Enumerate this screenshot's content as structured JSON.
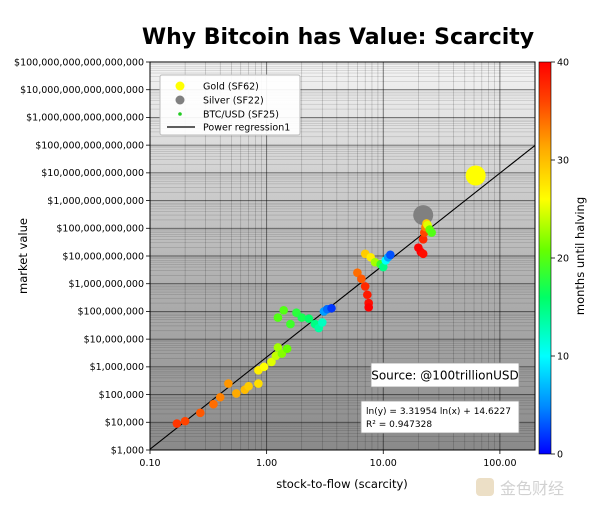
{
  "chart_data": {
    "type": "scatter",
    "title": "Why Bitcoin has Value: Scarcity",
    "xlabel": "stock-to-flow (scarcity)",
    "ylabel": "market value",
    "x_scale": "log",
    "y_scale": "log",
    "xlim": [
      0.1,
      200
    ],
    "ylim": [
      1000,
      100000000000000000
    ],
    "x_ticks": [
      0.1,
      1,
      10,
      100
    ],
    "x_tick_labels": [
      "0.10",
      "1.00",
      "10.00",
      "100.00"
    ],
    "y_ticks": [
      1000,
      10000,
      100000,
      1000000,
      10000000,
      100000000,
      1000000000,
      10000000000,
      100000000000,
      1000000000000,
      10000000000000,
      100000000000000,
      1000000000000000,
      10000000000000000,
      100000000000000000
    ],
    "y_tick_labels": [
      "$1,000",
      "$10,000",
      "$100,000",
      "$1,000,000",
      "$10,000,000",
      "$100,000,000",
      "$1,000,000,000",
      "$10,000,000,000",
      "$100,000,000,000",
      "$1,000,000,000,000",
      "$10,000,000,000,000",
      "$100,000,000,000,000",
      "$1,000,000,000,000,000",
      "$10,000,000,000,000,000",
      "$100,000,000,000,000,000"
    ],
    "grid": true,
    "legend": {
      "placement": "top-left",
      "entries": [
        {
          "label": "Gold (SF62)",
          "marker": "circle",
          "color": "#ffff00"
        },
        {
          "label": "Silver (SF22)",
          "marker": "circle",
          "color": "#808080"
        },
        {
          "label": "BTC/USD (SF25)",
          "marker": "dot",
          "color": "#22cc22"
        },
        {
          "label": "Power regression1",
          "marker": "line",
          "color": "#000000"
        }
      ]
    },
    "regression": {
      "label": "Power regression1",
      "equation": "ln(y) = 3.31954 ln(x) + 14.6227",
      "r2": "R² = 0.947328",
      "slope": 3.31954,
      "intercept": 14.6227
    },
    "source": "Source: @100trillionUSD",
    "colorbar": {
      "label": "months until halving",
      "min": 0,
      "max": 40,
      "ticks": [
        0,
        10,
        20,
        30,
        40
      ],
      "colormap": [
        "#0000ff",
        "#0088ff",
        "#00ffff",
        "#00ff66",
        "#66ff00",
        "#ffff00",
        "#ffaa00",
        "#ff4400",
        "#ff0000"
      ]
    },
    "series": [
      {
        "name": "Gold (SF62)",
        "points": [
          {
            "x": 62,
            "y": 8000000000000,
            "c": "#ffff00"
          }
        ]
      },
      {
        "name": "Silver (SF22)",
        "points": [
          {
            "x": 22,
            "y": 300000000000,
            "c": "#808080"
          }
        ]
      },
      {
        "name": "BTC/USD (SF25)",
        "points": [
          {
            "x": 0.17,
            "y": 9000,
            "m": 36
          },
          {
            "x": 0.2,
            "y": 11000,
            "m": 35
          },
          {
            "x": 0.27,
            "y": 22000,
            "m": 34
          },
          {
            "x": 0.35,
            "y": 45000,
            "m": 33
          },
          {
            "x": 0.4,
            "y": 80000,
            "m": 32
          },
          {
            "x": 0.47,
            "y": 250000,
            "m": 31
          },
          {
            "x": 0.55,
            "y": 110000,
            "m": 30
          },
          {
            "x": 0.65,
            "y": 150000,
            "m": 29
          },
          {
            "x": 0.7,
            "y": 200000,
            "m": 28
          },
          {
            "x": 0.85,
            "y": 250000,
            "m": 27
          },
          {
            "x": 0.85,
            "y": 750000,
            "m": 26
          },
          {
            "x": 0.95,
            "y": 1000000,
            "m": 25
          },
          {
            "x": 1.1,
            "y": 1500000,
            "m": 24
          },
          {
            "x": 1.2,
            "y": 2500000,
            "m": 23
          },
          {
            "x": 1.25,
            "y": 5000000,
            "m": 22
          },
          {
            "x": 1.35,
            "y": 3000000,
            "m": 21
          },
          {
            "x": 1.5,
            "y": 4500000,
            "m": 20
          },
          {
            "x": 1.25,
            "y": 60000000,
            "m": 19
          },
          {
            "x": 1.4,
            "y": 110000000,
            "m": 19
          },
          {
            "x": 1.6,
            "y": 35000000,
            "m": 18
          },
          {
            "x": 1.8,
            "y": 90000000,
            "m": 17
          },
          {
            "x": 2.0,
            "y": 60000000,
            "m": 16
          },
          {
            "x": 2.3,
            "y": 55000000,
            "m": 15
          },
          {
            "x": 2.6,
            "y": 35000000,
            "m": 14
          },
          {
            "x": 2.8,
            "y": 25000000,
            "m": 13
          },
          {
            "x": 3.0,
            "y": 40000000,
            "m": 12
          },
          {
            "x": 3.1,
            "y": 100000000,
            "m": 6
          },
          {
            "x": 3.3,
            "y": 120000000,
            "m": 4
          },
          {
            "x": 3.6,
            "y": 130000000,
            "m": 2
          },
          {
            "x": 6.0,
            "y": 2500000000,
            "m": 33
          },
          {
            "x": 6.5,
            "y": 1500000000,
            "m": 34
          },
          {
            "x": 7.0,
            "y": 800000000,
            "m": 37
          },
          {
            "x": 7.3,
            "y": 400000000,
            "m": 38
          },
          {
            "x": 7.5,
            "y": 200000000,
            "m": 39
          },
          {
            "x": 7.5,
            "y": 140000000,
            "m": 40
          },
          {
            "x": 7.0,
            "y": 12000000000,
            "m": 28
          },
          {
            "x": 7.8,
            "y": 9000000000,
            "m": 26
          },
          {
            "x": 8.5,
            "y": 6000000000,
            "m": 22
          },
          {
            "x": 9.5,
            "y": 5000000000,
            "m": 18
          },
          {
            "x": 10,
            "y": 4000000000,
            "m": 14
          },
          {
            "x": 10.5,
            "y": 7000000000,
            "m": 10
          },
          {
            "x": 11,
            "y": 9000000000,
            "m": 6
          },
          {
            "x": 11.5,
            "y": 11000000000,
            "m": 3
          },
          {
            "x": 20,
            "y": 20000000000,
            "m": 40
          },
          {
            "x": 21,
            "y": 14000000000,
            "m": 40
          },
          {
            "x": 22,
            "y": 12000000000,
            "m": 39
          },
          {
            "x": 22,
            "y": 40000000000,
            "m": 37
          },
          {
            "x": 22.5,
            "y": 70000000000,
            "m": 35
          },
          {
            "x": 23,
            "y": 110000000000,
            "m": 32
          },
          {
            "x": 23.5,
            "y": 150000000000,
            "m": 28
          },
          {
            "x": 24,
            "y": 130000000000,
            "m": 24
          },
          {
            "x": 25,
            "y": 90000000000,
            "m": 20
          },
          {
            "x": 26,
            "y": 70000000000,
            "m": 19
          }
        ]
      }
    ]
  },
  "watermark": "金色财经"
}
